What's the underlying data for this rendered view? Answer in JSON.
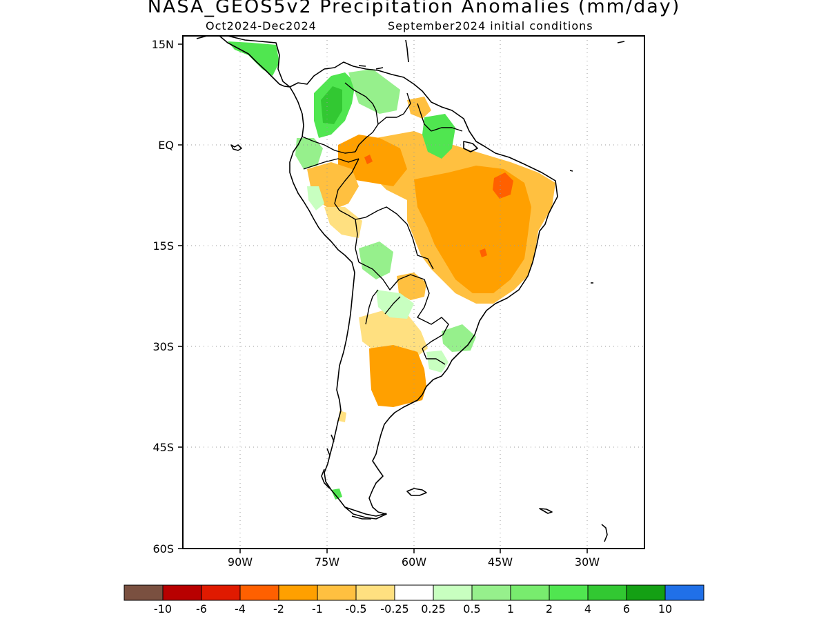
{
  "title": "NASA_GEOS5v2 Precipitation Anomalies (mm/day)",
  "subtitle_period": "Oct2024-Dec2024",
  "subtitle_init": "September2024 initial conditions",
  "map": {
    "lat_labels": [
      "15N",
      "EQ",
      "15S",
      "30S",
      "45S",
      "60S"
    ],
    "lon_labels": [
      "90W",
      "75W",
      "60W",
      "45W",
      "30W"
    ]
  },
  "colorbar": {
    "colors": [
      "#7a5040",
      "#b80000",
      "#e01a00",
      "#ff6000",
      "#ffa000",
      "#ffc040",
      "#ffe080",
      "#ffffff",
      "#c8ffc0",
      "#96f08c",
      "#78ec6e",
      "#50e650",
      "#32c832",
      "#14a014",
      "#2070e8"
    ],
    "labels": [
      "-10",
      "-6",
      "-4",
      "-2",
      "-1",
      "-0.5",
      "-0.25",
      "0.25",
      "0.5",
      "1",
      "2",
      "4",
      "6",
      "10"
    ]
  },
  "anomaly_colors": {
    "dry_strong": "#ff6000",
    "dry_moderate": "#ffa000",
    "dry_light": "#ffc040",
    "dry_weak": "#ffe080",
    "wet_weak": "#c8ffc0",
    "wet_light": "#96f08c",
    "wet_moderate": "#50e650",
    "wet_strong": "#32c832"
  }
}
